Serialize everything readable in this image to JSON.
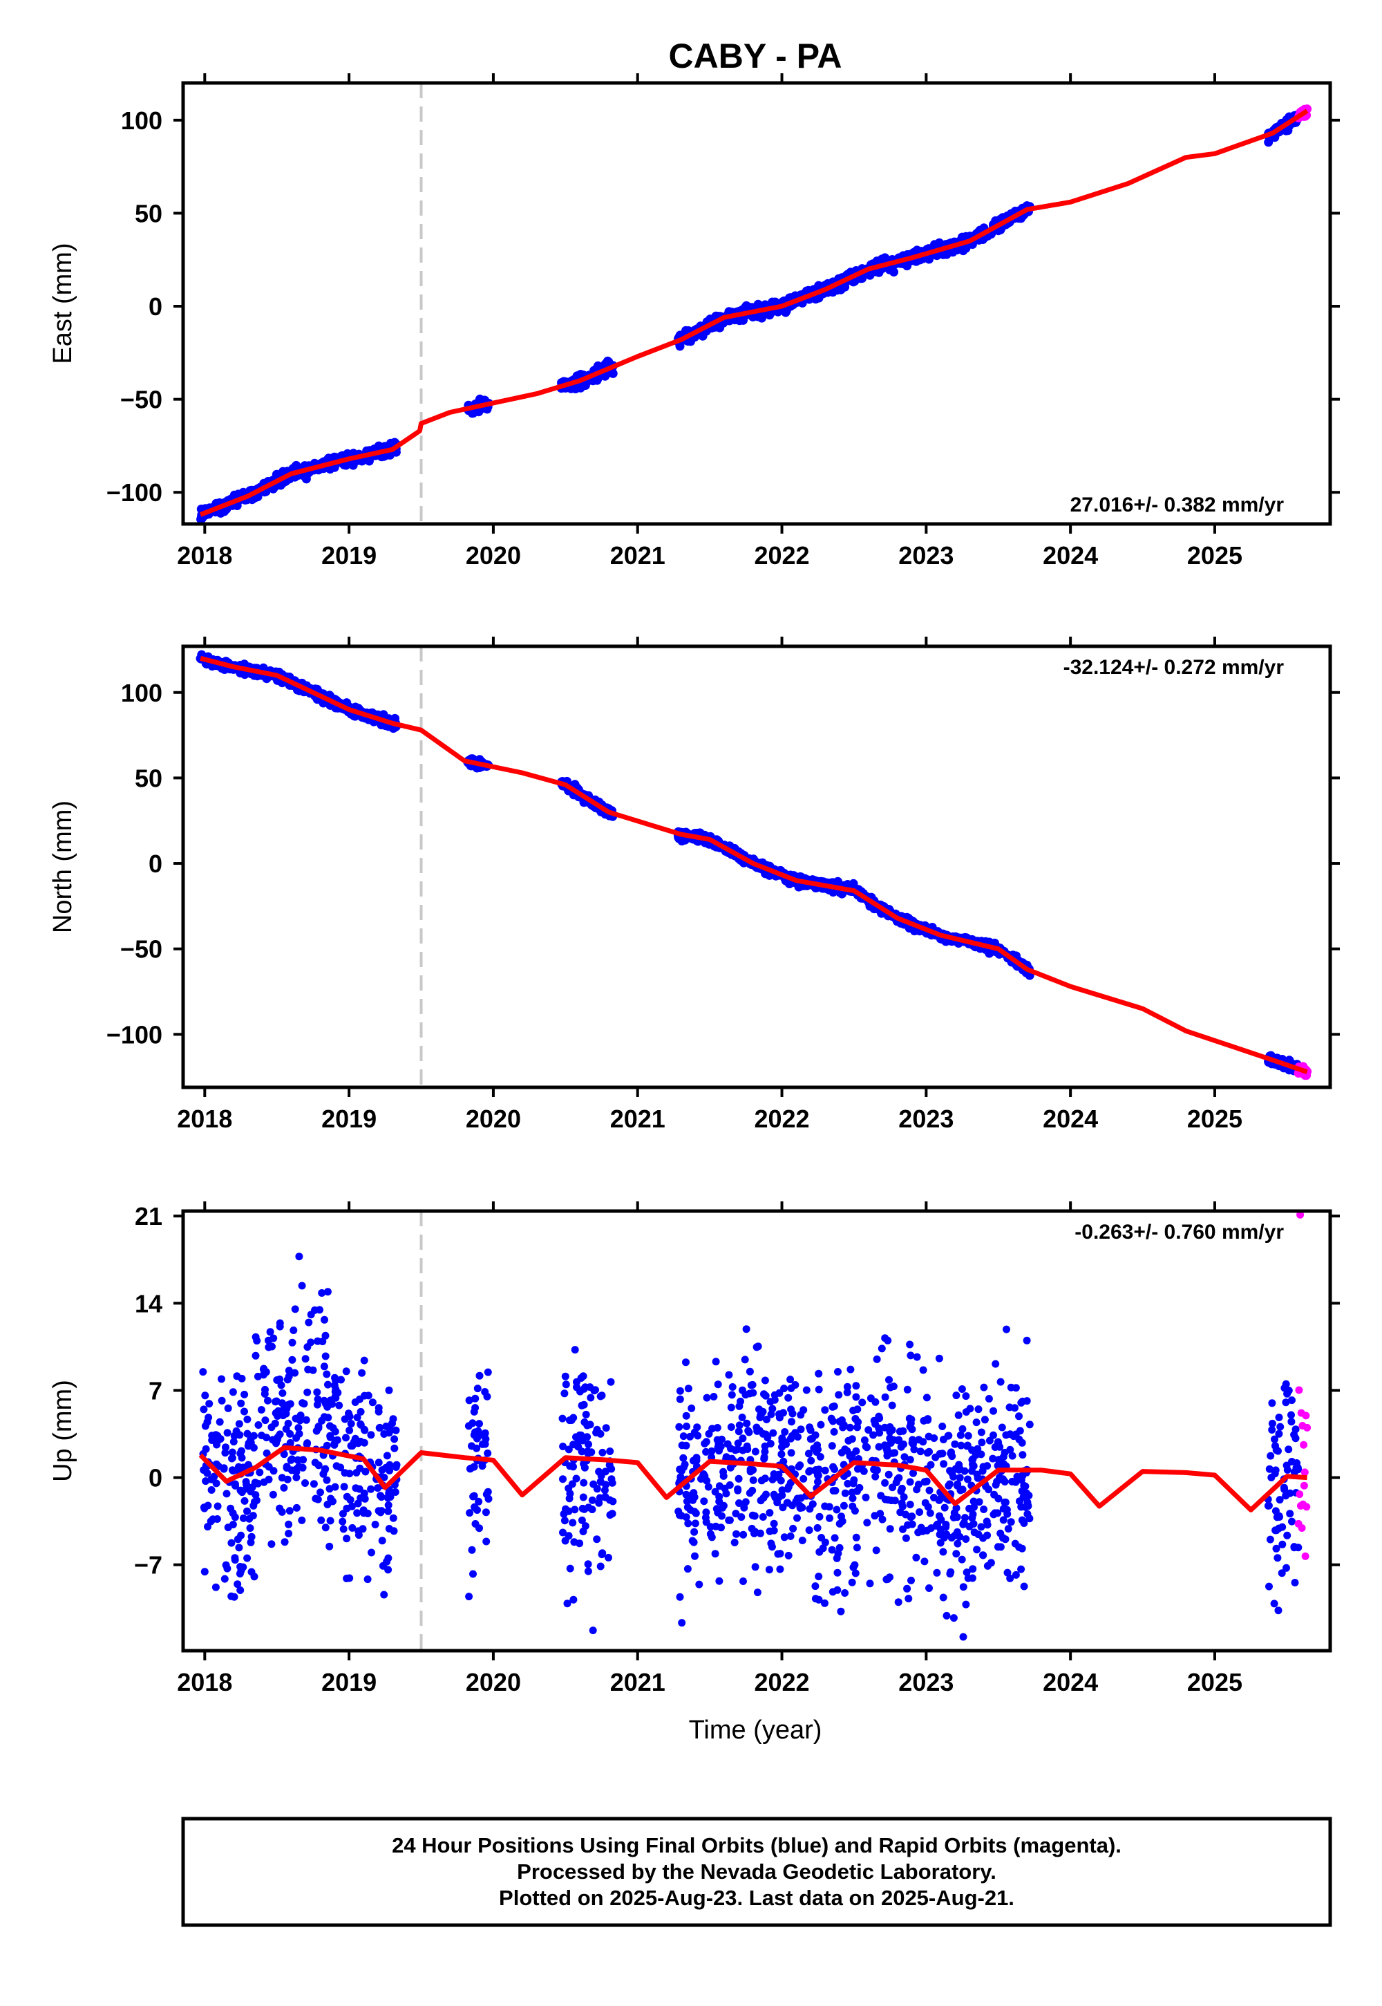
{
  "title": "CABY - PA",
  "xlabel": "Time (year)",
  "footer": {
    "line1": "24 Hour Positions Using Final Orbits (blue) and Rapid Orbits (magenta).",
    "line2": "Processed by the Nevada Geodetic Laboratory.",
    "line3": "Plotted on 2025-Aug-23. Last data on 2025-Aug-21."
  },
  "colors": {
    "final_orbits": "#0000ff",
    "rapid_orbits": "#ff00ff",
    "model_fit": "#ff0000",
    "event_line": "#c8c8c8",
    "frame": "#000000"
  },
  "chart_data": [
    {
      "type": "scatter",
      "panel": "east",
      "ylabel": "East (mm)",
      "rate_text": "27.016+/- 0.382 mm/yr",
      "rate_placement": "bottom-right",
      "xlim": [
        2017.85,
        2025.8
      ],
      "ylim": [
        -117,
        120
      ],
      "xticks": [
        2018,
        2019,
        2020,
        2021,
        2022,
        2023,
        2024,
        2025
      ],
      "yticks": [
        -100,
        -50,
        0,
        50,
        100
      ],
      "ytick_labels": [
        "−100",
        "−50",
        "0",
        "50",
        "100"
      ],
      "event_line_x": 2019.5,
      "data_spans": [
        [
          2017.97,
          2019.33
        ],
        [
          2019.82,
          2019.97
        ],
        [
          2020.47,
          2020.83
        ],
        [
          2021.28,
          2023.72
        ],
        [
          2025.37,
          2025.58
        ]
      ],
      "rapid_span": [
        2025.58,
        2025.64
      ],
      "noise": 1.6,
      "series": [
        {
          "name": "model",
          "x": [
            2017.97,
            2018.3,
            2018.6,
            2019.0,
            2019.3,
            2019.49,
            2019.5,
            2019.7,
            2020.0,
            2020.3,
            2020.6,
            2021.0,
            2021.3,
            2021.6,
            2022.0,
            2022.3,
            2022.6,
            2022.9,
            2023.3,
            2023.7,
            2024.0,
            2024.4,
            2024.8,
            2025.0,
            2025.4,
            2025.64
          ],
          "y": [
            -112,
            -102,
            -90,
            -82,
            -77,
            -67,
            -63,
            -57,
            -52,
            -47,
            -40,
            -27,
            -18,
            -6,
            0,
            9,
            20,
            26,
            35,
            52,
            56,
            66,
            80,
            82,
            93,
            105
          ]
        }
      ]
    },
    {
      "type": "scatter",
      "panel": "north",
      "ylabel": "North (mm)",
      "rate_text": "-32.124+/- 0.272 mm/yr",
      "rate_placement": "top-right",
      "xlim": [
        2017.85,
        2025.8
      ],
      "ylim": [
        -131,
        127
      ],
      "xticks": [
        2018,
        2019,
        2020,
        2021,
        2022,
        2023,
        2024,
        2025
      ],
      "yticks": [
        -100,
        -50,
        0,
        50,
        100
      ],
      "ytick_labels": [
        "−100",
        "−50",
        "0",
        "50",
        "100"
      ],
      "event_line_x": 2019.5,
      "data_spans": [
        [
          2017.97,
          2019.33
        ],
        [
          2019.82,
          2019.97
        ],
        [
          2020.47,
          2020.83
        ],
        [
          2021.28,
          2023.72
        ],
        [
          2025.37,
          2025.58
        ]
      ],
      "rapid_span": [
        2025.58,
        2025.64
      ],
      "noise": 1.3,
      "series": [
        {
          "name": "model",
          "x": [
            2017.97,
            2018.2,
            2018.5,
            2018.8,
            2019.0,
            2019.3,
            2019.5,
            2019.8,
            2020.2,
            2020.5,
            2020.8,
            2021.3,
            2021.5,
            2021.8,
            2022.1,
            2022.5,
            2022.8,
            2023.1,
            2023.5,
            2023.7,
            2024.0,
            2024.5,
            2024.8,
            2025.4,
            2025.64
          ],
          "y": [
            120,
            115,
            110,
            98,
            90,
            82,
            78,
            60,
            53,
            46,
            30,
            17,
            14,
            0,
            -10,
            -16,
            -32,
            -42,
            -50,
            -62,
            -72,
            -85,
            -98,
            -115,
            -122
          ]
        }
      ]
    },
    {
      "type": "scatter",
      "panel": "up",
      "ylabel": "Up (mm)",
      "rate_text": "-0.263+/- 0.760 mm/yr",
      "rate_placement": "top-right",
      "xlim": [
        2017.85,
        2025.8
      ],
      "ylim": [
        -13.9,
        21.4
      ],
      "xticks": [
        2018,
        2019,
        2020,
        2021,
        2022,
        2023,
        2024,
        2025
      ],
      "yticks": [
        -7,
        0,
        7,
        14,
        21
      ],
      "ytick_labels": [
        "−7",
        "0",
        "7",
        "14",
        "21"
      ],
      "event_line_x": 2019.5,
      "data_spans": [
        [
          2017.97,
          2019.33
        ],
        [
          2019.82,
          2019.97
        ],
        [
          2020.47,
          2020.83
        ],
        [
          2021.28,
          2023.72
        ],
        [
          2025.37,
          2025.58
        ]
      ],
      "rapid_span": [
        2025.58,
        2025.64
      ],
      "noise": 4.3,
      "series": [
        {
          "name": "model",
          "x": [
            2017.97,
            2018.15,
            2018.35,
            2018.55,
            2018.8,
            2019.1,
            2019.25,
            2019.5,
            2019.8,
            2020.0,
            2020.2,
            2020.5,
            2020.8,
            2021.0,
            2021.2,
            2021.5,
            2021.8,
            2022.0,
            2022.2,
            2022.5,
            2022.8,
            2023.0,
            2023.2,
            2023.5,
            2023.8,
            2024.0,
            2024.2,
            2024.5,
            2024.8,
            2025.0,
            2025.25,
            2025.5,
            2025.64
          ],
          "y": [
            1.8,
            -0.3,
            0.8,
            2.4,
            2.2,
            1.5,
            -0.8,
            2.0,
            1.6,
            1.4,
            -1.4,
            1.6,
            1.4,
            1.2,
            -1.6,
            1.3,
            1.1,
            0.9,
            -1.5,
            1.2,
            1.0,
            0.6,
            -2.1,
            0.6,
            0.6,
            0.3,
            -2.3,
            0.5,
            0.4,
            0.2,
            -2.6,
            0.1,
            0.0
          ]
        }
      ]
    }
  ]
}
